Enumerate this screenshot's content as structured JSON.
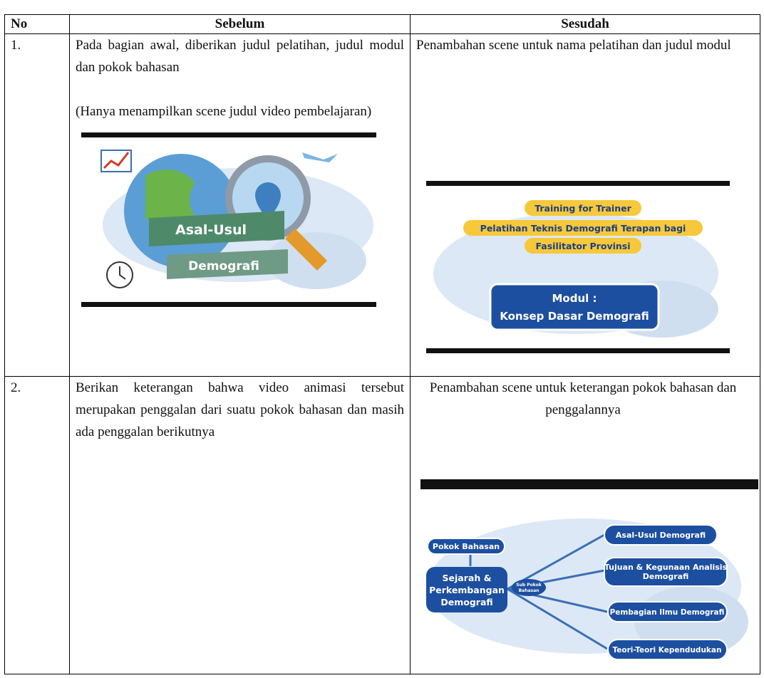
{
  "header": {
    "no": "No",
    "before": "Sebelum",
    "after": "Sesudah"
  },
  "rows": [
    {
      "no": "1.",
      "before": {
        "paragraphs": [
          "Pada bagian awal, diberikan judul pelatihan, judul modul dan pokok bahasan",
          "(Hanya menampilkan scene judul video pembelajaran)"
        ],
        "image": {
          "banner_top": "Asal-Usul",
          "banner_bottom": "Demografi"
        }
      },
      "after": {
        "paragraphs": [
          "Penambahan scene untuk nama pelatihan dan judul modul"
        ],
        "image": {
          "lines": [
            "Training for Trainer",
            "Pelatihan Teknis Demografi Terapan bagi",
            "Fasilitator Provinsi"
          ],
          "module": [
            "Modul :",
            "Konsep Dasar Demografi"
          ]
        }
      }
    },
    {
      "no": "2.",
      "before": {
        "paragraphs": [
          "Berikan keterangan bahwa video animasi tersebut merupakan penggalan dari suatu pokok bahasan dan  masih ada penggalan berikutnya"
        ]
      },
      "after": {
        "paragraphs": [
          "Penambahan scene untuk keterangan pokok bahasan dan penggalannya"
        ],
        "image": {
          "main_label": "Pokok Bahasan",
          "main": [
            "Sejarah &",
            "Perkembangan",
            "Demografi"
          ],
          "sub_label": [
            "Sub Pokok",
            "Bahasan"
          ],
          "subs": [
            "Asal-Usul Demografi",
            [
              "Tujuan & Kegunaan Analisis",
              "Demografi"
            ],
            "Pembagian Ilmu Demografi",
            "Teori-Teori Kependudukan"
          ]
        }
      }
    }
  ]
}
